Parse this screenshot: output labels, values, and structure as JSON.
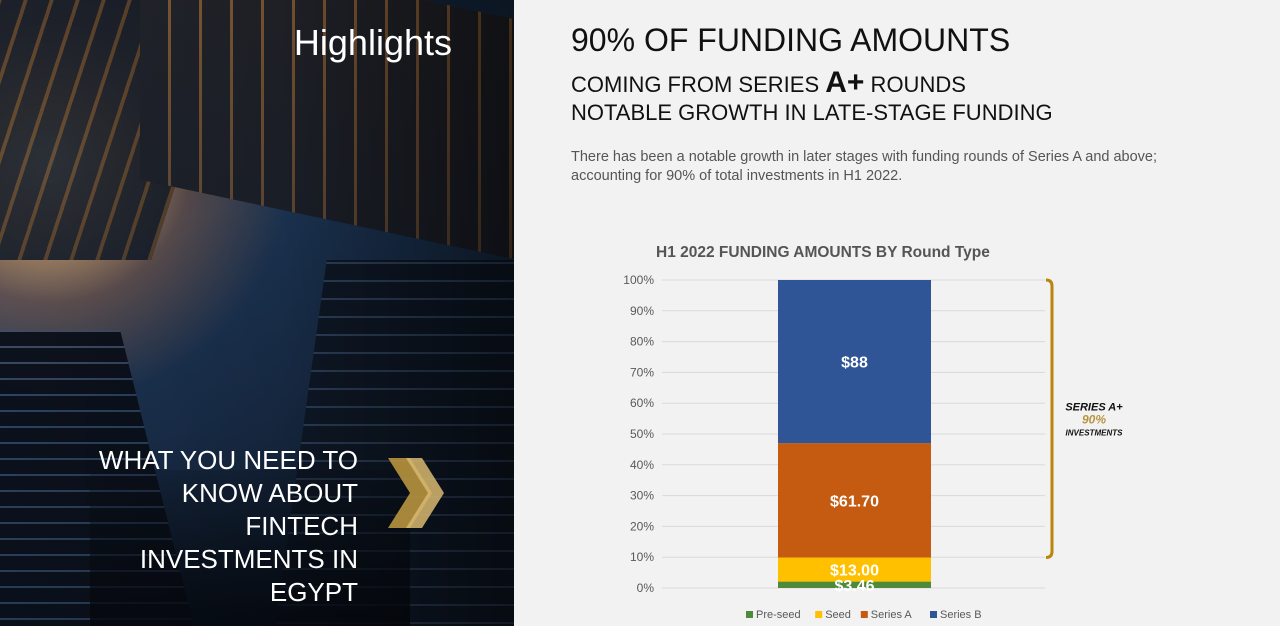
{
  "left": {
    "title": "Highlights",
    "side_heading_lines": [
      "WHAT YOU NEED TO",
      "KNOW ABOUT",
      "FINTECH",
      "INVESTMENTS IN",
      "EGYPT"
    ]
  },
  "headline": {
    "line1": "90% OF FUNDING AMOUNTS",
    "line2_pre": "COMING FROM SERIES ",
    "line2_big": "A+",
    "line2_post": " ROUNDS",
    "line3": "NOTABLE GROWTH IN LATE-STAGE FUNDING"
  },
  "paragraph": "There has been a notable growth in later stages with funding rounds of Series A and above; accounting for 90% of total investments in H1 2022.",
  "colors": {
    "pre_seed": "#4e8a3a",
    "seed": "#ffc000",
    "series_a": "#c55a11",
    "series_b": "#2f5597",
    "bracket": "#b8860b",
    "gold": "#b8943e"
  },
  "chart_data": {
    "type": "bar",
    "stacked": true,
    "percent_axis": true,
    "title": "H1 2022 FUNDING AMOUNTS BY Round Type",
    "y_ticks": [
      "0%",
      "10%",
      "20%",
      "30%",
      "40%",
      "50%",
      "60%",
      "70%",
      "80%",
      "90%",
      "100%"
    ],
    "ylim": [
      0,
      100
    ],
    "grid": true,
    "legend_position": "bottom",
    "series": [
      {
        "name": "Pre-seed",
        "value": 3.46,
        "label": "$3.46",
        "color": "#4e8a3a"
      },
      {
        "name": "Seed",
        "value": 13.0,
        "label": "$13.00",
        "color": "#ffc000"
      },
      {
        "name": "Series A",
        "value": 61.7,
        "label": "$61.70",
        "color": "#c55a11"
      },
      {
        "name": "Series B",
        "value": 88,
        "label": "$88",
        "color": "#2f5597"
      }
    ],
    "annotation": {
      "line1": "SERIES A+",
      "line2": "90%",
      "line3": "INVESTMENTS"
    }
  }
}
